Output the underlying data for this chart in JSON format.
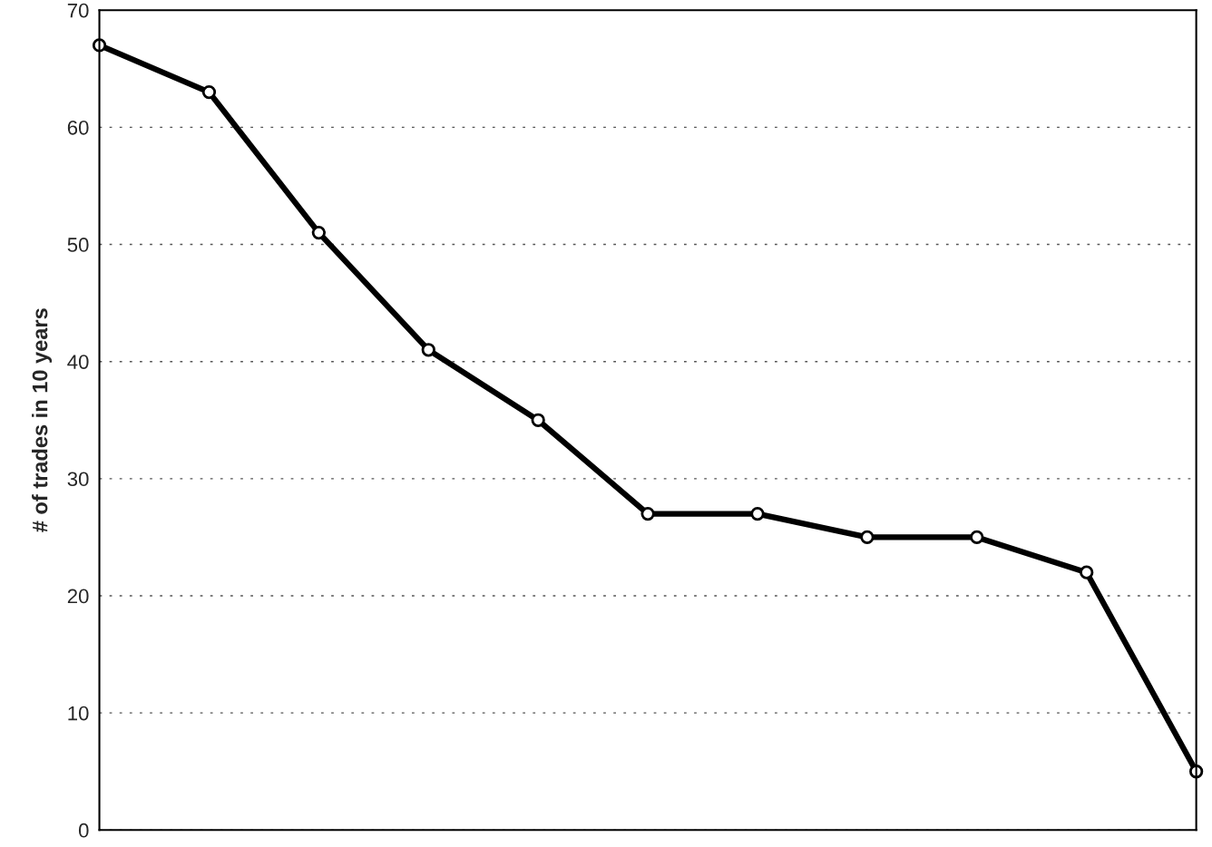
{
  "chart_data": {
    "type": "line",
    "ylabel": "# of trades in 10 years",
    "categories": [
      null,
      null,
      null,
      null,
      null,
      null,
      null,
      null,
      null,
      null,
      null
    ],
    "series": [
      {
        "color": "#000000",
        "values": [
          67,
          63,
          51,
          41,
          35,
          27,
          27,
          25,
          25,
          22,
          5
        ]
      }
    ],
    "ylim": [
      0,
      70
    ],
    "yticks": [
      0,
      10,
      20,
      30,
      40,
      50,
      60,
      70
    ],
    "grid": "y",
    "marker": "circle",
    "line_style": "solid",
    "legend": false
  }
}
